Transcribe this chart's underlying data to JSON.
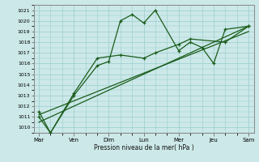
{
  "xlabel": "Pression niveau de la mer( hPa )",
  "bg_color": "#cce8e8",
  "grid_color": "#99cccc",
  "line_color": "#1a5c1a",
  "ylim": [
    1009.5,
    1021.5
  ],
  "yticks": [
    1010,
    1011,
    1012,
    1013,
    1014,
    1015,
    1016,
    1017,
    1018,
    1019,
    1020,
    1021
  ],
  "xtick_labels": [
    "Mar",
    "Ven",
    "Dim",
    "Lun",
    "Mer",
    "Jeu",
    "Sam"
  ],
  "xtick_positions": [
    0,
    1,
    2,
    3,
    4,
    5,
    6
  ],
  "xlim": [
    -0.15,
    6.15
  ],
  "series1_x": [
    0,
    0.33,
    1.0,
    1.67,
    2.0,
    2.33,
    2.67,
    3.0,
    3.33,
    4.0,
    4.33,
    4.67,
    5.0,
    5.33,
    6.0
  ],
  "series1_y": [
    1011.5,
    1009.5,
    1013.0,
    1015.8,
    1016.2,
    1020.0,
    1020.6,
    1019.8,
    1021.0,
    1017.2,
    1018.0,
    1017.5,
    1016.0,
    1019.2,
    1019.5
  ],
  "series2_x": [
    0,
    0.33,
    1.0,
    1.67,
    2.33,
    3.0,
    3.33,
    4.0,
    4.33,
    5.33,
    6.0
  ],
  "series2_y": [
    1011.0,
    1009.5,
    1013.2,
    1016.5,
    1016.8,
    1016.5,
    1017.0,
    1017.8,
    1018.3,
    1018.0,
    1019.5
  ],
  "trend1_x": [
    0,
    6.0
  ],
  "trend1_y": [
    1011.2,
    1019.0
  ],
  "trend2_x": [
    0,
    6.0
  ],
  "trend2_y": [
    1010.5,
    1019.5
  ]
}
